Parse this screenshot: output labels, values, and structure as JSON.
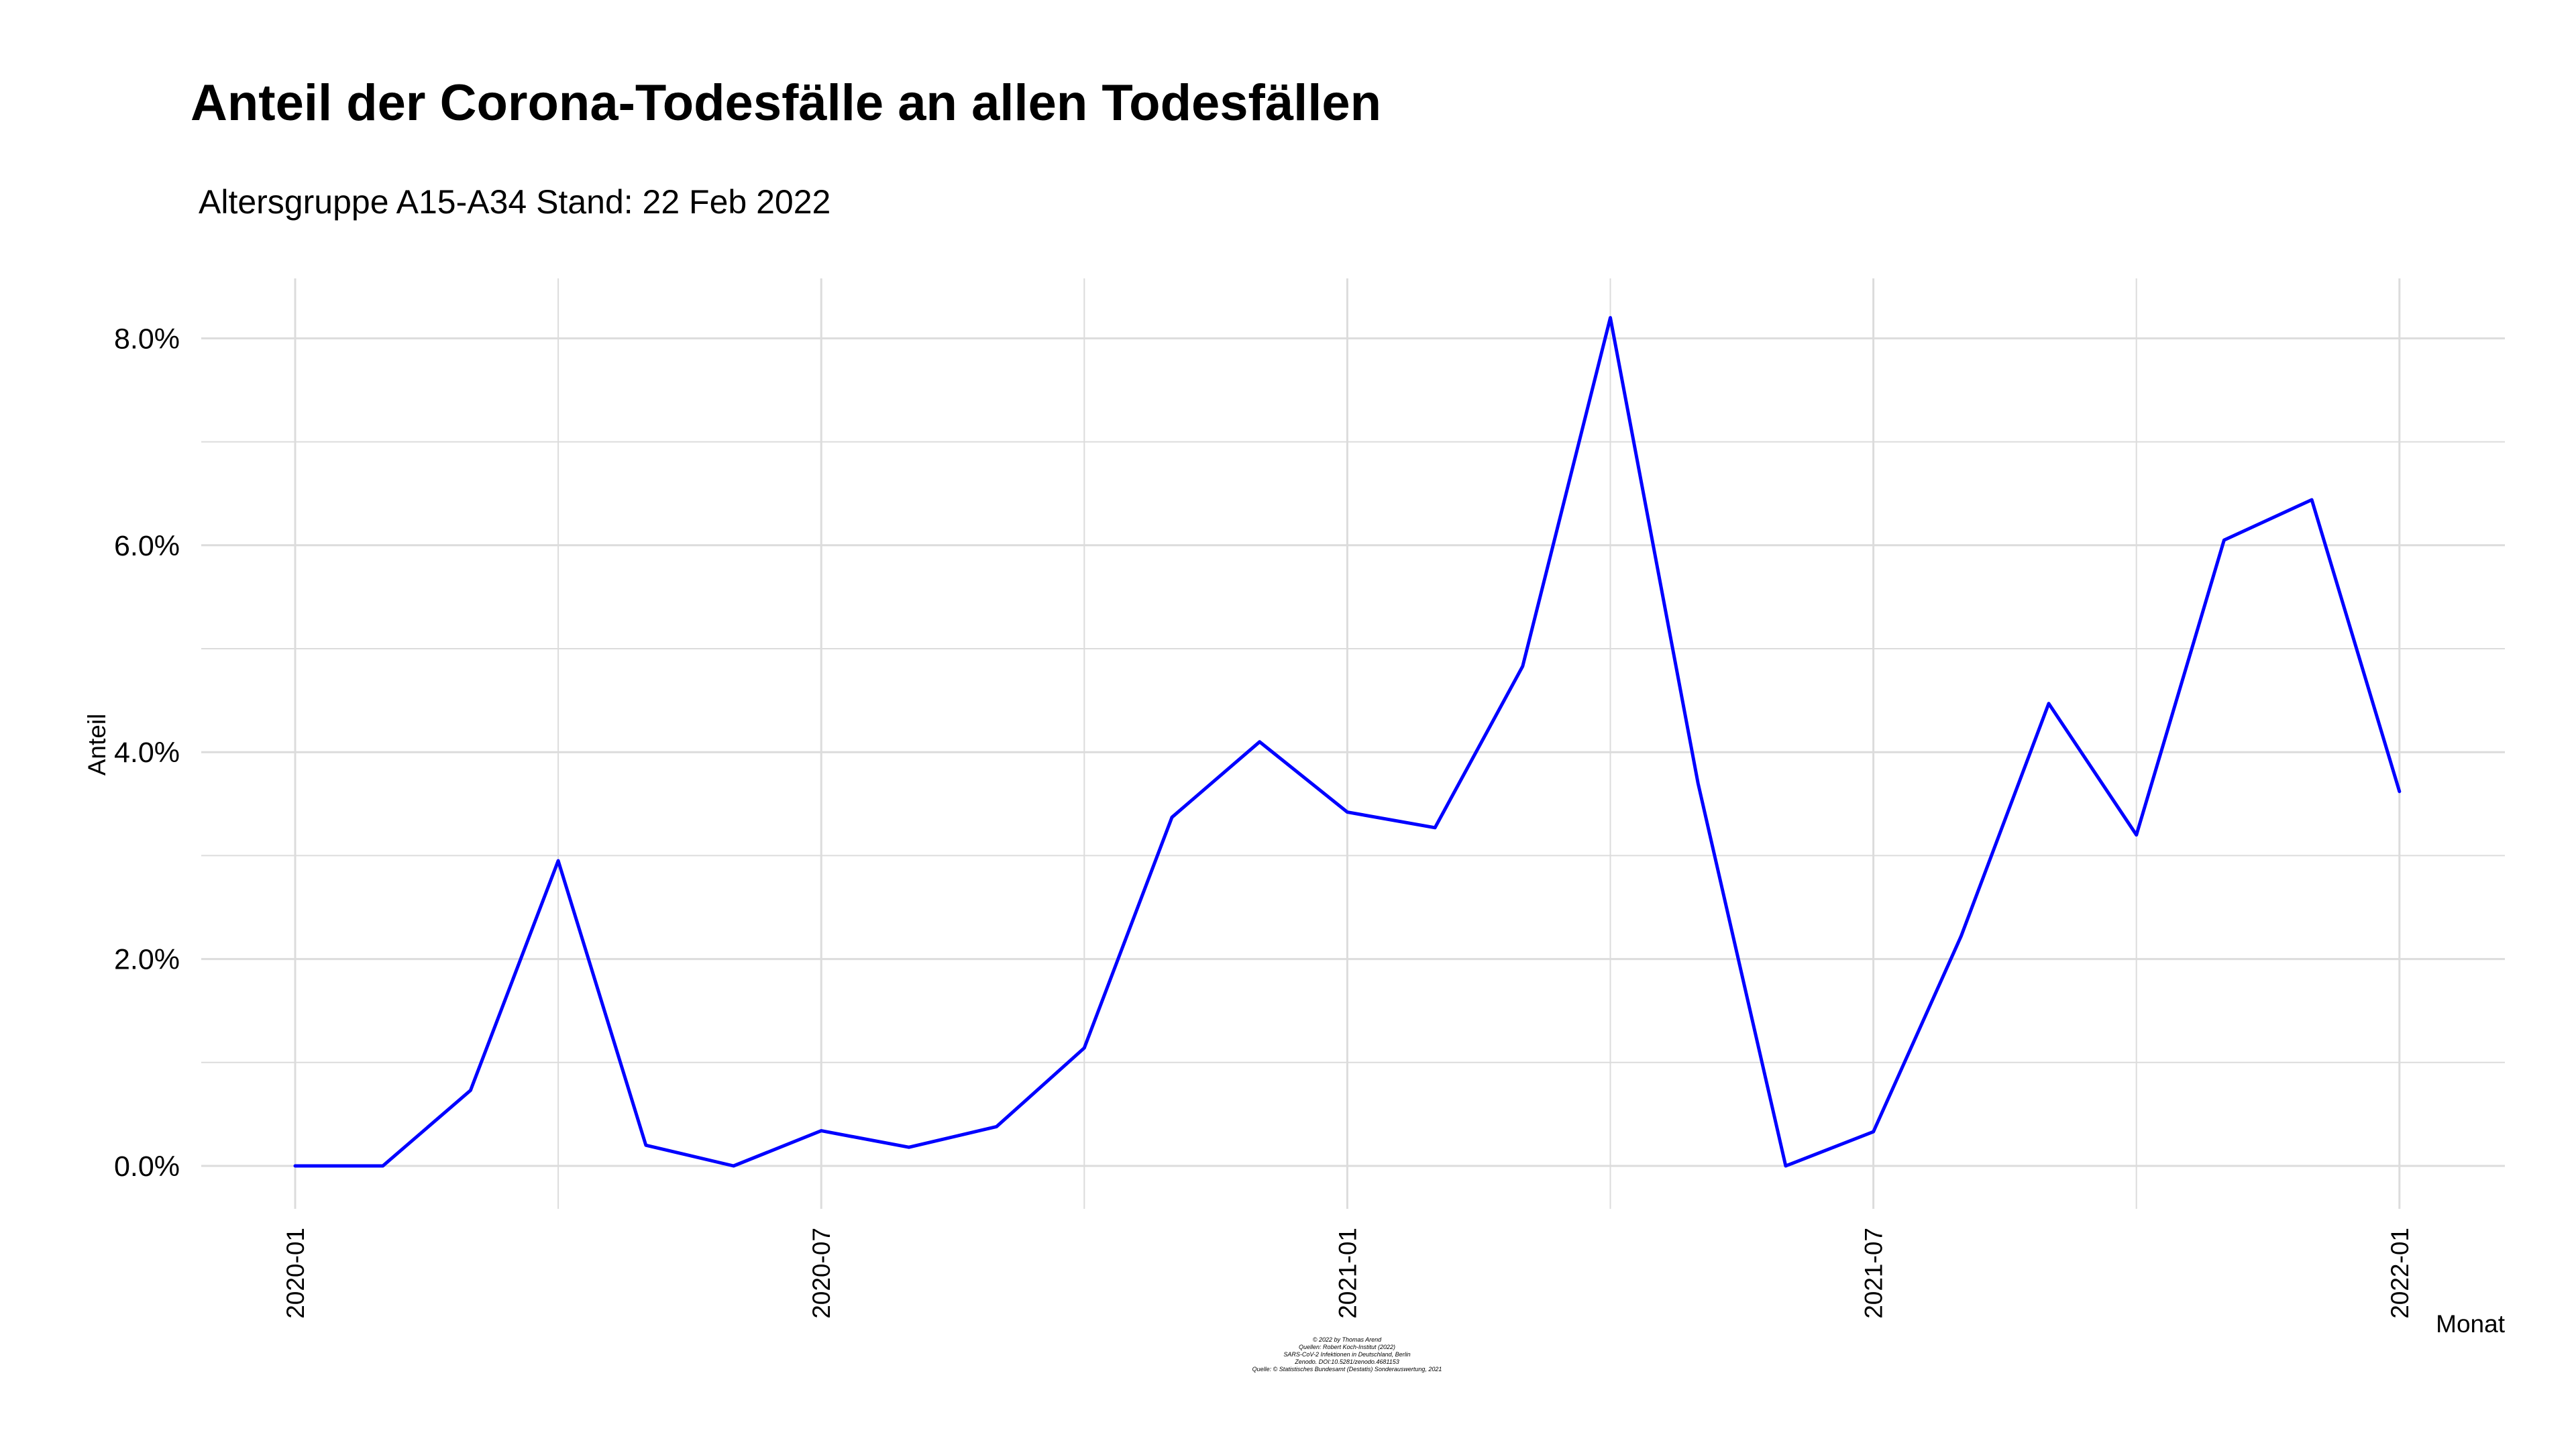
{
  "chart_data": {
    "type": "line",
    "title": "Anteil der Corona-Todesfälle an allen Todesfällen",
    "subtitle": "Altersgruppe A15-A34  Stand: 22 Feb 2022",
    "xlabel": "Monat",
    "ylabel": "Anteil",
    "x": [
      "2020-01",
      "2020-02",
      "2020-03",
      "2020-04",
      "2020-05",
      "2020-06",
      "2020-07",
      "2020-08",
      "2020-09",
      "2020-10",
      "2020-11",
      "2020-12",
      "2021-01",
      "2021-02",
      "2021-03",
      "2021-04",
      "2021-05",
      "2021-06",
      "2021-07",
      "2021-08",
      "2021-09",
      "2021-10",
      "2021-11",
      "2021-12",
      "2022-01"
    ],
    "series": [
      {
        "color": "#0000ff",
        "values": [
          0.0,
          0.0,
          0.73,
          2.95,
          0.2,
          0.0,
          0.34,
          0.18,
          0.38,
          1.14,
          3.37,
          4.1,
          3.42,
          3.27,
          4.83,
          8.2,
          3.7,
          0.0,
          0.33,
          2.22,
          4.47,
          3.2,
          6.05,
          6.44,
          3.62
        ]
      }
    ],
    "ylim": [
      -0.4,
      8.6
    ],
    "yticks": [
      0,
      2,
      4,
      6,
      8
    ],
    "ytick_labels": [
      "0.0%",
      "2.0%",
      "4.0%",
      "6.0%",
      "8.0%"
    ],
    "xticks": [
      "2020-01",
      "2020-07",
      "2021-01",
      "2021-07",
      "2022-01"
    ],
    "xtick_labels": [
      "2020-01",
      "2020-07",
      "2021-01",
      "2021-07",
      "2022-01"
    ],
    "grid": true,
    "grid_color": "#dcdcdc",
    "caption": [
      "© 2022 by Thomas Arend",
      "Quellen: Robert Koch-Institut (2022)",
      "SARS-CoV-2 Infektionen in Deutschland, Berlin",
      "Zenodo. DOI:10.5281/zenodo.4681153",
      "Quelle: © Statistisches Bundesamt (Destatis) Sonderauswertung, 2021"
    ]
  }
}
